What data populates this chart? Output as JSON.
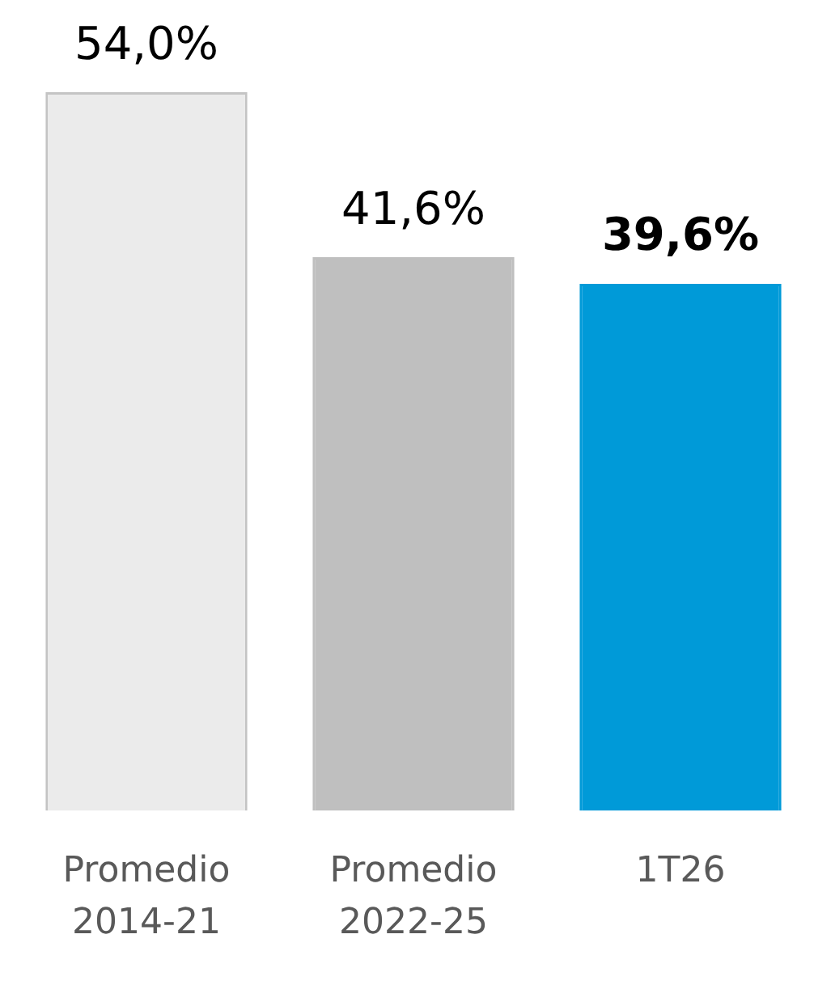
{
  "chart_data": {
    "type": "bar",
    "categories": [
      "Promedio 2014-21",
      "Promedio 2022-25",
      "1T26"
    ],
    "values": [
      54.0,
      41.6,
      39.6
    ],
    "colors": [
      "#ebebeb",
      "#bfbfbf",
      "#009ad8"
    ],
    "value_labels": [
      "54,0%",
      "41,6%",
      "39,6%"
    ],
    "grid": false,
    "legend": false,
    "tick_labels": "x"
  }
}
